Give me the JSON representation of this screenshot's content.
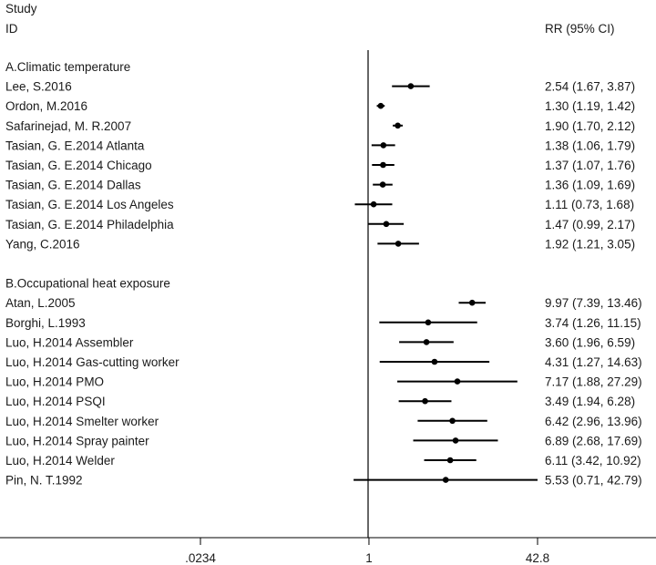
{
  "header": {
    "study_label": "Study",
    "id_label": "ID",
    "rr_label": "RR (95% CI)"
  },
  "chart_data": {
    "type": "forest",
    "scale": "log",
    "xlim": [
      0.0234,
      42.8
    ],
    "xticks": [
      {
        "value": 0.0234,
        "label": ".0234"
      },
      {
        "value": 1,
        "label": "1"
      },
      {
        "value": 42.8,
        "label": "42.8"
      }
    ],
    "null_line": 1,
    "groups": [
      {
        "title": "A.Climatic temperature",
        "studies": [
          {
            "id": "Lee, S.2016",
            "rr": 2.54,
            "lo": 1.67,
            "hi": 3.87,
            "label": "2.54 (1.67, 3.87)"
          },
          {
            "id": "Ordon, M.2016",
            "rr": 1.3,
            "lo": 1.19,
            "hi": 1.42,
            "label": "1.30 (1.19, 1.42)"
          },
          {
            "id": "Safarinejad, M. R.2007",
            "rr": 1.9,
            "lo": 1.7,
            "hi": 2.12,
            "label": "1.90 (1.70, 2.12)"
          },
          {
            "id": "Tasian, G. E.2014 Atlanta",
            "rr": 1.38,
            "lo": 1.06,
            "hi": 1.79,
            "label": "1.38 (1.06, 1.79)"
          },
          {
            "id": "Tasian, G. E.2014 Chicago",
            "rr": 1.37,
            "lo": 1.07,
            "hi": 1.76,
            "label": "1.37 (1.07, 1.76)"
          },
          {
            "id": "Tasian, G. E.2014 Dallas",
            "rr": 1.36,
            "lo": 1.09,
            "hi": 1.69,
            "label": "1.36 (1.09, 1.69)"
          },
          {
            "id": "Tasian, G. E.2014 Los Angeles",
            "rr": 1.11,
            "lo": 0.73,
            "hi": 1.68,
            "label": "1.11 (0.73, 1.68)"
          },
          {
            "id": "Tasian, G. E.2014 Philadelphia",
            "rr": 1.47,
            "lo": 0.99,
            "hi": 2.17,
            "label": "1.47 (0.99, 2.17)"
          },
          {
            "id": "Yang, C.2016",
            "rr": 1.92,
            "lo": 1.21,
            "hi": 3.05,
            "label": "1.92 (1.21, 3.05)"
          }
        ]
      },
      {
        "title": "B.Occupational heat exposure",
        "studies": [
          {
            "id": "Atan, L.2005",
            "rr": 9.97,
            "lo": 7.39,
            "hi": 13.46,
            "label": "9.97 (7.39, 13.46)"
          },
          {
            "id": "Borghi, L.1993",
            "rr": 3.74,
            "lo": 1.26,
            "hi": 11.15,
            "label": "3.74 (1.26, 11.15)"
          },
          {
            "id": "Luo, H.2014 Assembler",
            "rr": 3.6,
            "lo": 1.96,
            "hi": 6.59,
            "label": "3.60 (1.96, 6.59)"
          },
          {
            "id": "Luo, H.2014 Gas-cutting worker",
            "rr": 4.31,
            "lo": 1.27,
            "hi": 14.63,
            "label": "4.31 (1.27, 14.63)"
          },
          {
            "id": "Luo, H.2014 PMO",
            "rr": 7.17,
            "lo": 1.88,
            "hi": 27.29,
            "label": "7.17 (1.88, 27.29)"
          },
          {
            "id": "Luo, H.2014 PSQI",
            "rr": 3.49,
            "lo": 1.94,
            "hi": 6.28,
            "label": "3.49 (1.94, 6.28)"
          },
          {
            "id": "Luo, H.2014 Smelter worker",
            "rr": 6.42,
            "lo": 2.96,
            "hi": 13.96,
            "label": "6.42 (2.96, 13.96)"
          },
          {
            "id": "Luo, H.2014 Spray painter",
            "rr": 6.89,
            "lo": 2.68,
            "hi": 17.69,
            "label": "6.89 (2.68, 17.69)"
          },
          {
            "id": "Luo, H.2014 Welder",
            "rr": 6.11,
            "lo": 3.42,
            "hi": 10.92,
            "label": "6.11 (3.42, 10.92)"
          },
          {
            "id": "Pin, N. T.1992",
            "rr": 5.53,
            "lo": 0.71,
            "hi": 42.79,
            "label": "5.53 (0.71, 42.79)"
          }
        ]
      }
    ]
  }
}
